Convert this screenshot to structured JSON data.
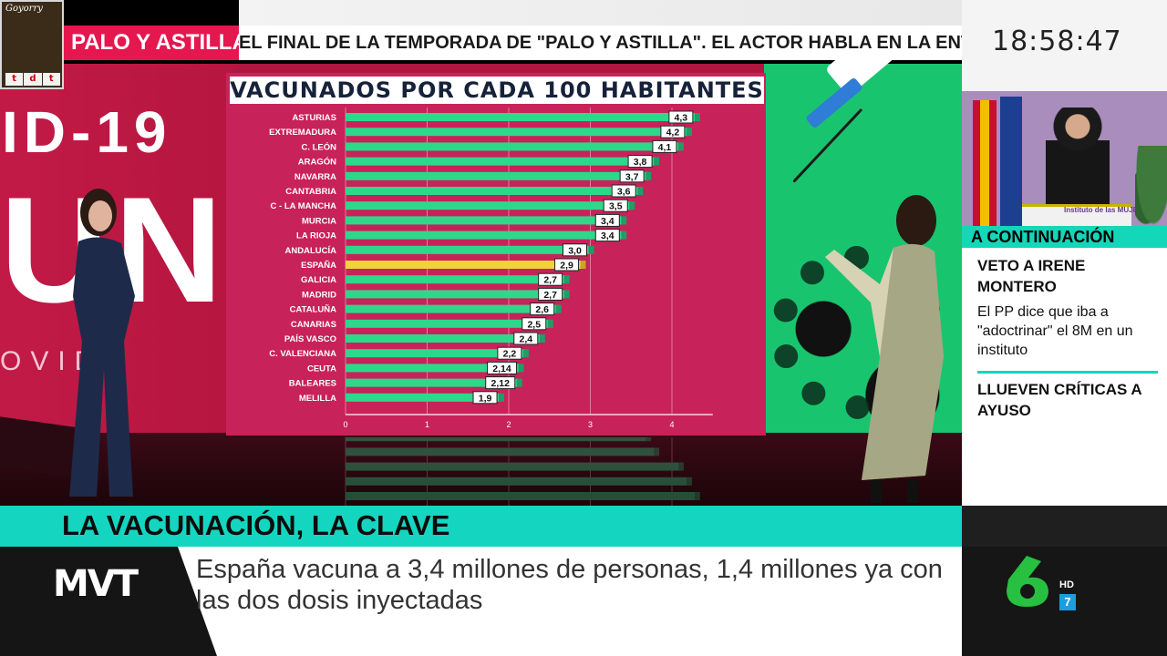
{
  "broadcast": {
    "logo": {
      "name": "Goyorry",
      "tdt": "tdt"
    },
    "ticker": {
      "label": "PALO Y ASTILLA",
      "text": "EL FINAL DE LA TEMPORADA DE \"PALO Y ASTILLA\". EL ACTOR HABLA EN LA ENTRE"
    },
    "clock": "18:58:47",
    "studio_wall": {
      "line1": "ID-19",
      "line2": "UNA",
      "line3": "OVID"
    },
    "next": {
      "header": "A CONTINUACIÓN",
      "lectern_text": "Instituto de las MUJERES",
      "items": [
        {
          "headline": "VETO A IRENE MONTERO",
          "body": "El PP dice que iba a \"adoctrinar\" el 8M en un instituto"
        },
        {
          "headline": "LLUEVEN CRÍTICAS A AYUSO",
          "body": ""
        }
      ]
    },
    "lower_third": {
      "headline": "LA VACUNACIÓN, LA CLAVE",
      "caption": "España vacuna a 3,4 millones de personas, 1,4 millones ya con las dos dosis inyectadas",
      "program": "MVT"
    },
    "channel": {
      "number": "6",
      "hd": "HD",
      "sub": "7"
    },
    "colors": {
      "accent": "#14d6c0",
      "ticker_red": "#e5174f",
      "bar_green": "#2ed88a",
      "highlight_bar": "#f2d23a",
      "channel_green": "#27c040"
    }
  },
  "chart_data": {
    "type": "bar",
    "orientation": "horizontal",
    "title": "VACUNADOS POR CADA 100 HABITANTES",
    "categories": [
      "ASTURIAS",
      "EXTREMADURA",
      "C. LEÓN",
      "ARAGÓN",
      "NAVARRA",
      "CANTABRIA",
      "C - LA MANCHA",
      "MURCIA",
      "LA RIOJA",
      "ANDALUCÍA",
      "ESPAÑA",
      "GALICIA",
      "MADRID",
      "CATALUÑA",
      "CANARIAS",
      "PAÍS VASCO",
      "C. VALENCIANA",
      "CEUTA",
      "BALEARES",
      "MELILLA"
    ],
    "values": [
      4.3,
      4.2,
      4.1,
      3.8,
      3.7,
      3.6,
      3.5,
      3.4,
      3.4,
      3.0,
      2.9,
      2.7,
      2.7,
      2.6,
      2.5,
      2.4,
      2.2,
      2.14,
      2.12,
      1.9
    ],
    "value_labels": [
      "4,3",
      "4,2",
      "4,1",
      "3,8",
      "3,7",
      "3,6",
      "3,5",
      "3,4",
      "3,4",
      "3,0",
      "2,9",
      "2,7",
      "2,7",
      "2,6",
      "2,5",
      "2,4",
      "2,2",
      "2,14",
      "2,12",
      "1,9"
    ],
    "highlight": "ESPAÑA",
    "xlim": [
      0,
      4.5
    ],
    "xticks": [
      0,
      1,
      2,
      3,
      4
    ],
    "grid": true
  }
}
